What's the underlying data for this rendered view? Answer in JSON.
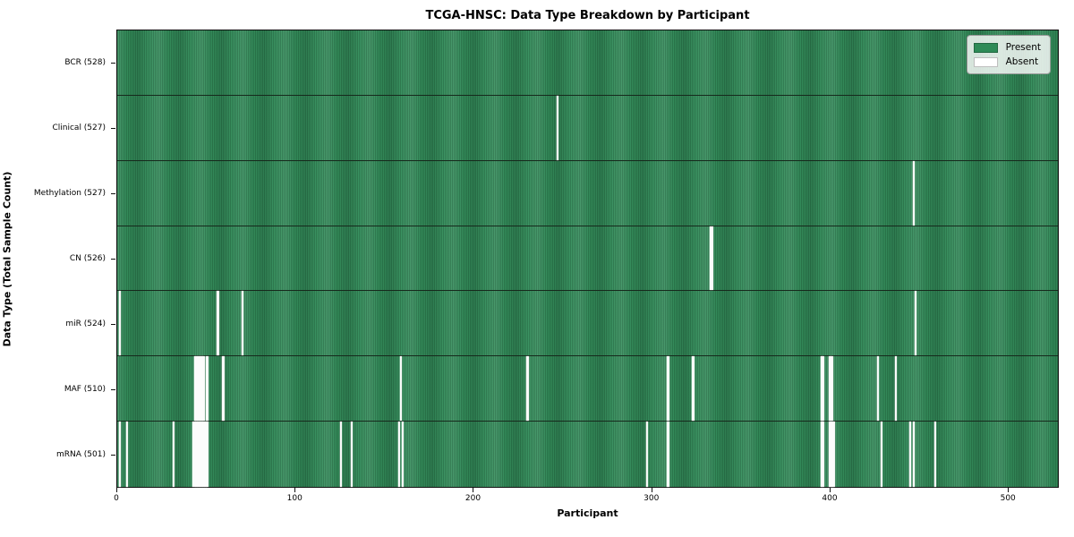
{
  "title": "TCGA-HNSC: Data Type Breakdown by Participant",
  "axes": {
    "xlabel": "Participant",
    "ylabel": "Data Type (Total Sample Count)",
    "x_ticks": [
      0,
      100,
      200,
      300,
      400,
      500
    ]
  },
  "legend": {
    "items": [
      {
        "label": "Present",
        "color": "#2e8b57"
      },
      {
        "label": "Absent",
        "color": "#ffffff"
      }
    ]
  },
  "colors": {
    "present": "#2e8b57",
    "present_stripe_edge": "#1e5c3c",
    "absent": "#ffffff",
    "row_divider": "#16291c",
    "plot_border": "#111111"
  },
  "chart_data": {
    "type": "heatmap",
    "x_max": 528.5,
    "n_participants": 528,
    "legend_position": "upper right",
    "rows": [
      {
        "label": "BCR (528)",
        "data_type": "BCR",
        "present_count": 528,
        "absent_participants": []
      },
      {
        "label": "Clinical (527)",
        "data_type": "Clinical",
        "present_count": 527,
        "absent_participants": [
          247
        ]
      },
      {
        "label": "Methylation (527)",
        "data_type": "Methylation",
        "present_count": 527,
        "absent_participants": [
          447
        ]
      },
      {
        "label": "CN (526)",
        "data_type": "CN",
        "present_count": 526,
        "absent_participants": [
          333,
          334
        ]
      },
      {
        "label": "miR (524)",
        "data_type": "miR",
        "present_count": 524,
        "absent_participants": [
          1,
          56,
          70,
          448
        ]
      },
      {
        "label": "MAF (510)",
        "data_type": "MAF",
        "present_count": 510,
        "absent_participants": [
          43,
          44,
          45,
          46,
          47,
          48,
          50,
          59,
          159,
          230,
          309,
          323,
          395,
          396,
          400,
          401,
          427,
          437
        ]
      },
      {
        "label": "mRNA (501)",
        "data_type": "mRNA",
        "present_count": 501,
        "absent_participants": [
          1,
          5,
          31,
          42,
          43,
          44,
          45,
          46,
          47,
          48,
          49,
          50,
          125,
          131,
          158,
          160,
          297,
          309,
          395,
          396,
          400,
          401,
          402,
          429,
          445,
          447,
          459
        ]
      }
    ]
  }
}
